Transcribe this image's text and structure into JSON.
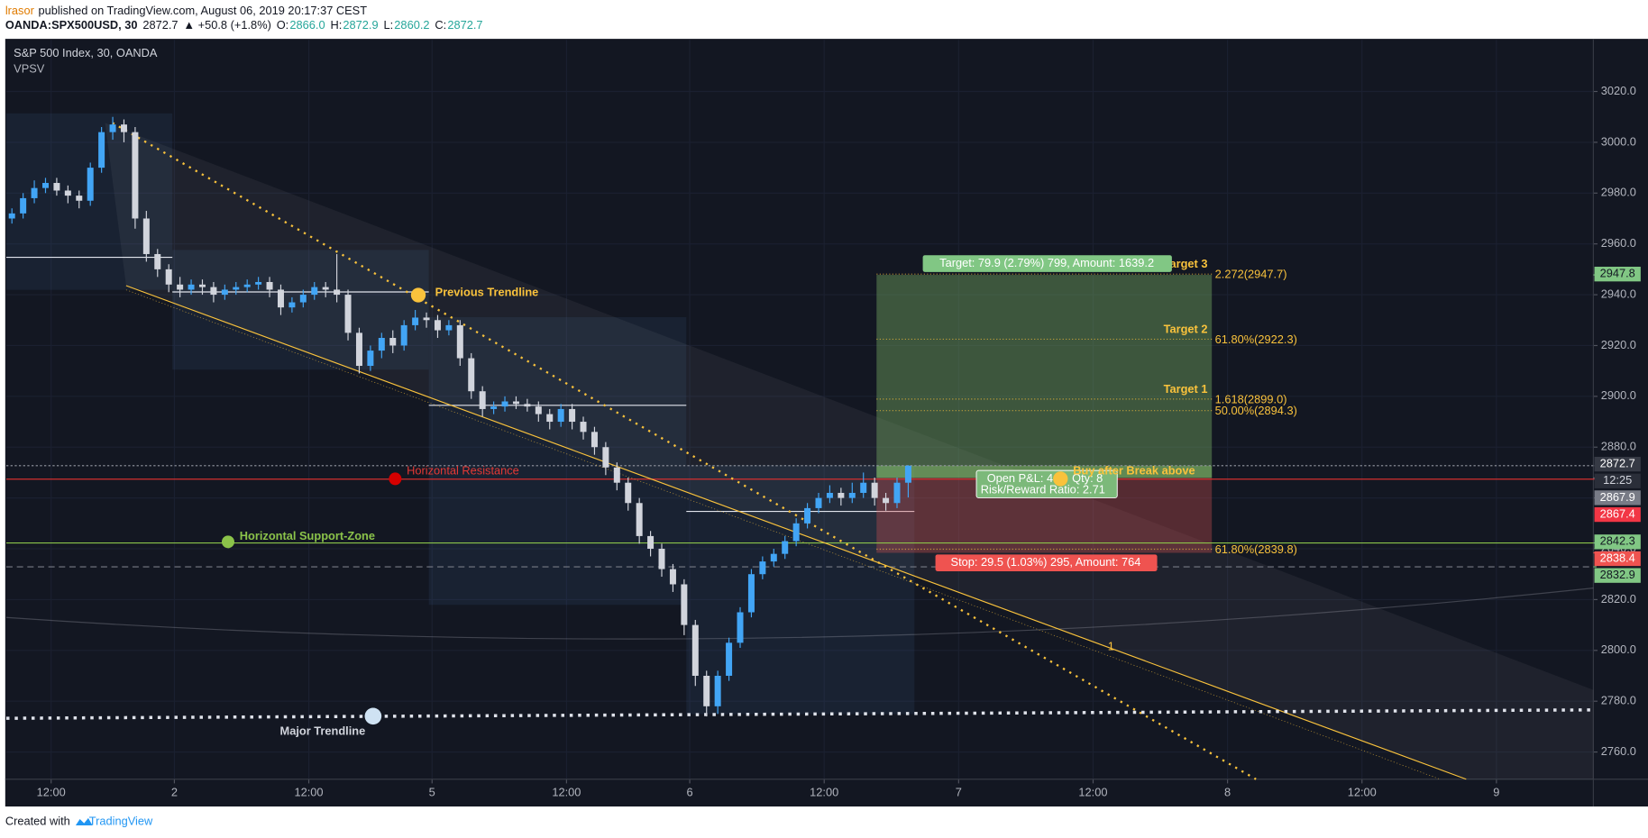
{
  "header": {
    "author": "lrasor",
    "published": "published on TradingView.com, August 06, 2019 20:17:37 CEST",
    "symbol": "OANDA:SPX500USD, 30",
    "last": "2872.7",
    "change": "▲ +50.8 (+1.8%)",
    "ohlc": [
      {
        "label": "O:",
        "value": "2866.0"
      },
      {
        "label": "H:",
        "value": "2872.9"
      },
      {
        "label": "L:",
        "value": "2860.2"
      },
      {
        "label": "C:",
        "value": "2872.7"
      }
    ]
  },
  "chart_data": {
    "type": "candlestick",
    "title": "S&P 500 Index, 30, OANDA",
    "subtitle": "VPSV",
    "xlim": [
      0,
      283.3
    ],
    "xticks": [
      {
        "value": 8,
        "label": "12:00"
      },
      {
        "value": 30,
        "label": "2"
      },
      {
        "value": 54,
        "label": "12:00"
      },
      {
        "value": 76,
        "label": "5"
      },
      {
        "value": 100,
        "label": "12:00"
      },
      {
        "value": 122,
        "label": "6"
      },
      {
        "value": 146,
        "label": "12:00"
      },
      {
        "value": 170,
        "label": "7"
      },
      {
        "value": 194,
        "label": "12:00"
      },
      {
        "value": 218,
        "label": "8"
      },
      {
        "value": 242,
        "label": "12:00"
      },
      {
        "value": 266,
        "label": "9"
      }
    ],
    "ylim": [
      2749.3,
      3040.3
    ],
    "yticks": [
      {
        "value": 2760,
        "label": "2760.0"
      },
      {
        "value": 2780,
        "label": "2780.0"
      },
      {
        "value": 2800,
        "label": "2800.0"
      },
      {
        "value": 2820,
        "label": "2820.0"
      },
      {
        "value": 2840,
        "label": "2840.0"
      },
      {
        "value": 2860,
        "label": "2860.0"
      },
      {
        "value": 2880,
        "label": "2880.0"
      },
      {
        "value": 2900,
        "label": "2900.0"
      },
      {
        "value": 2920,
        "label": "2920.0"
      },
      {
        "value": 2940,
        "label": "2940.0"
      },
      {
        "value": 2960,
        "label": "2960.0"
      },
      {
        "value": 2980,
        "label": "2980.0"
      },
      {
        "value": 3000,
        "label": "3000.0"
      },
      {
        "value": 3020,
        "label": "3020.0"
      }
    ],
    "grid": true,
    "up_color": "#42a5f5",
    "down_color": "#d1d4dc",
    "x": [
      1,
      3,
      5,
      7,
      9,
      11,
      13,
      15,
      17,
      19,
      21,
      23,
      25,
      27,
      29,
      31,
      33,
      35,
      37,
      39,
      41,
      43,
      45,
      47,
      49,
      51,
      53,
      55,
      57,
      59,
      61,
      63,
      65,
      67,
      69,
      71,
      73,
      75,
      77,
      79,
      81,
      83,
      85,
      87,
      89,
      91,
      93,
      95,
      97,
      99,
      101,
      103,
      105,
      107,
      109,
      111,
      113,
      115,
      117,
      119,
      121,
      123,
      125,
      127,
      129,
      131,
      133,
      135,
      137,
      139,
      141,
      143,
      145,
      147,
      149,
      151,
      153,
      155,
      157,
      159,
      161
    ],
    "open": [
      2970,
      2972,
      2978,
      2982,
      2984,
      2981,
      2979,
      2977,
      2990,
      3004,
      3007,
      3004,
      2970,
      2956,
      2950,
      2944,
      2942,
      2944,
      2943,
      2940,
      2942,
      2943,
      2944,
      2945,
      2942,
      2935,
      2937,
      2940,
      2943,
      2942,
      2940,
      2925,
      2912,
      2918,
      2923,
      2920,
      2928,
      2931,
      2930,
      2926,
      2928,
      2915,
      2902,
      2895,
      2896,
      2898,
      2897,
      2896,
      2893,
      2890,
      2895,
      2890,
      2886,
      2880,
      2872,
      2866,
      2858,
      2845,
      2840,
      2832,
      2826,
      2810,
      2790,
      2778,
      2790,
      2803,
      2815,
      2830,
      2835,
      2838,
      2843,
      2850,
      2856,
      2860,
      2862,
      2860,
      2862,
      2866,
      2860,
      2858,
      2866.0
    ],
    "high": [
      2974,
      2980,
      2985,
      2986,
      2986,
      2983,
      2981,
      2992,
      3006,
      3010,
      3009,
      3006,
      2973,
      2958,
      2952,
      2947,
      2946,
      2946,
      2945,
      2944,
      2945,
      2946,
      2947,
      2947,
      2944,
      2939,
      2942,
      2945,
      2945,
      2956,
      2942,
      2927,
      2920,
      2925,
      2926,
      2930,
      2934,
      2933,
      2932,
      2930,
      2930,
      2917,
      2904,
      2898,
      2900,
      2900,
      2899,
      2898,
      2895,
      2897,
      2897,
      2892,
      2888,
      2882,
      2874,
      2868,
      2860,
      2847,
      2842,
      2834,
      2828,
      2812,
      2792,
      2792,
      2805,
      2817,
      2832,
      2837,
      2840,
      2845,
      2852,
      2858,
      2862,
      2865,
      2864,
      2866,
      2870,
      2868,
      2862,
      2868,
      2872.9
    ],
    "low": [
      2968,
      2970,
      2976,
      2980,
      2979,
      2976,
      2974,
      2975,
      2988,
      3001,
      3000,
      2966,
      2953,
      2947,
      2941,
      2939,
      2940,
      2940,
      2937,
      2938,
      2940,
      2941,
      2942,
      2939,
      2932,
      2933,
      2935,
      2938,
      2939,
      2937,
      2922,
      2909,
      2910,
      2915,
      2917,
      2918,
      2926,
      2927,
      2923,
      2924,
      2912,
      2899,
      2892,
      2893,
      2894,
      2895,
      2894,
      2890,
      2887,
      2888,
      2887,
      2883,
      2877,
      2869,
      2863,
      2855,
      2842,
      2837,
      2829,
      2823,
      2806,
      2786,
      2774,
      2775,
      2788,
      2801,
      2813,
      2828,
      2833,
      2836,
      2841,
      2848,
      2854,
      2858,
      2857,
      2858,
      2860,
      2857,
      2855,
      2856,
      2860.2
    ],
    "close": [
      2972,
      2978,
      2982,
      2984,
      2981,
      2979,
      2977,
      2990,
      3004,
      3007,
      3004,
      2970,
      2956,
      2950,
      2944,
      2942,
      2944,
      2943,
      2940,
      2942,
      2943,
      2944,
      2945,
      2942,
      2935,
      2937,
      2940,
      2943,
      2942,
      2940,
      2925,
      2912,
      2918,
      2923,
      2920,
      2928,
      2931,
      2930,
      2926,
      2928,
      2915,
      2902,
      2895,
      2896,
      2898,
      2897,
      2896,
      2893,
      2890,
      2895,
      2890,
      2886,
      2880,
      2872,
      2866,
      2858,
      2845,
      2840,
      2832,
      2826,
      2810,
      2790,
      2778,
      2790,
      2803,
      2815,
      2830,
      2835,
      2838,
      2843,
      2850,
      2856,
      2860,
      2862,
      2860,
      2862,
      2866,
      2860,
      2858,
      2866,
      2872.7
    ],
    "price_labels": [
      {
        "value": 2947.8,
        "color": "#81c784"
      },
      {
        "value": 2872.7,
        "color": "#363a45"
      },
      {
        "value": 2867.9,
        "color": "#787b86"
      },
      {
        "value": 2867.4,
        "color": "#f23645"
      },
      {
        "value": 2842.3,
        "color": "#81c784"
      },
      {
        "value": 2838.4,
        "color": "#ef5350"
      },
      {
        "value": 2832.9,
        "color": "#81c784"
      }
    ],
    "countdown": "12:25",
    "annotations": {
      "previous_trendline": "Previous Trendline",
      "horizontal_resistance": "Horizontal Resistance",
      "support_zone": "Horizontal Support-Zone",
      "major_trendline": "Major Trendline",
      "buy_signal": "Buy after Break above",
      "fib_index": "1"
    },
    "position": {
      "target_label": "Target: 79.9 (2.79%) 799, Amount: 1639.2",
      "stop_label": "Stop: 29.5 (1.03%) 295, Amount: 764",
      "open_pnl": "Open P&L: 4",
      "qty": "Qty: 8",
      "risk_reward": "Risk/Reward Ratio: 2.71"
    },
    "fib": [
      {
        "level": "2.272(2947.7)",
        "target": "Target 3"
      },
      {
        "level": "61.80%(2922.3)",
        "target": "Target 2"
      },
      {
        "level": "1.618(2899.0)",
        "target": "Target 1"
      },
      {
        "level": "50.00%(2894.3)"
      },
      {
        "level": "61.80%(2839.8)"
      }
    ]
  },
  "footer": {
    "created_with": "Created with",
    "brand": "TradingView"
  }
}
